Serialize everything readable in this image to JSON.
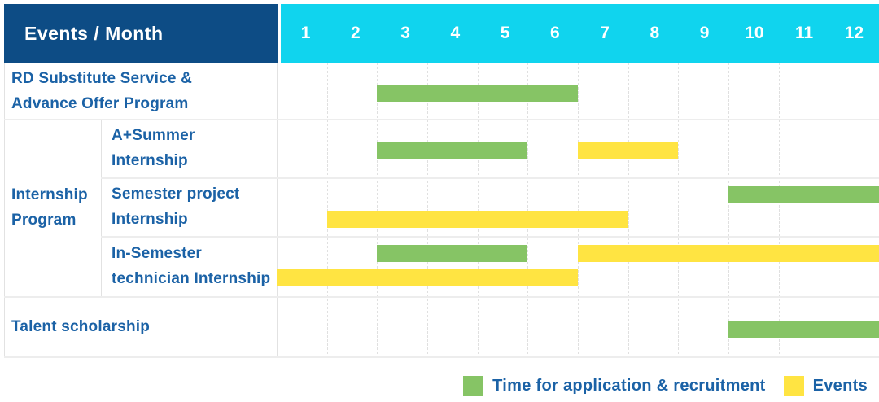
{
  "header": {
    "corner_label": "Events / Month",
    "months": [
      "1",
      "2",
      "3",
      "4",
      "5",
      "6",
      "7",
      "8",
      "9",
      "10",
      "11",
      "12"
    ]
  },
  "colors": {
    "header_bg": "#0d4c85",
    "months_bg": "#10d4ee",
    "header_text": "#ffffff",
    "label_text": "#1b62a6",
    "application": "#86c465",
    "events": "#ffe442",
    "grid": "#e0e0e0"
  },
  "chart_data": {
    "type": "bar",
    "subtype": "gantt",
    "xlabel": "Month",
    "x_ticks": [
      "1",
      "2",
      "3",
      "4",
      "5",
      "6",
      "7",
      "8",
      "9",
      "10",
      "11",
      "12"
    ],
    "x_range": [
      1,
      12
    ],
    "grid": true,
    "groups": [
      {
        "label": "Internship Program",
        "label_lines": [
          "Internship",
          "Program"
        ],
        "rows_spanned": [
          2,
          3,
          4
        ]
      }
    ],
    "rows": [
      {
        "label": "RD Substitute Service & Advance Offer Program",
        "label_lines": [
          "RD Substitute Service &",
          "Advance Offer Program"
        ],
        "group": null,
        "bars": [
          {
            "kind": "application",
            "start_month": 3,
            "end_month": 6,
            "lane": "single"
          }
        ]
      },
      {
        "label": "A+Summer Internship",
        "label_lines": [
          "A+Summer",
          "Internship"
        ],
        "group": "Internship Program",
        "bars": [
          {
            "kind": "application",
            "start_month": 3,
            "end_month": 5,
            "lane": "single"
          },
          {
            "kind": "events",
            "start_month": 7,
            "end_month": 8,
            "lane": "single"
          }
        ]
      },
      {
        "label": "Semester project Internship",
        "label_lines": [
          "Semester project",
          "Internship"
        ],
        "group": "Internship Program",
        "bars": [
          {
            "kind": "application",
            "start_month": 10,
            "end_month": 12,
            "lane": "top"
          },
          {
            "kind": "events",
            "start_month": 2,
            "end_month": 7,
            "lane": "bottom"
          }
        ]
      },
      {
        "label": "In-Semester technician Internship",
        "label_lines": [
          "In-Semester",
          "technician Internship"
        ],
        "group": "Internship Program",
        "bars": [
          {
            "kind": "application",
            "start_month": 3,
            "end_month": 5,
            "lane": "top"
          },
          {
            "kind": "events",
            "start_month": 7,
            "end_month": 12,
            "lane": "top"
          },
          {
            "kind": "events",
            "start_month": 1,
            "end_month": 6,
            "lane": "bottom"
          }
        ]
      },
      {
        "label": "Talent scholarship",
        "label_lines": [
          "Talent scholarship"
        ],
        "group": null,
        "bars": [
          {
            "kind": "application",
            "start_month": 10,
            "end_month": 12,
            "lane": "single"
          }
        ]
      }
    ],
    "legend": [
      {
        "key": "application",
        "label": "Time for application & recruitment",
        "color": "#86c465"
      },
      {
        "key": "events",
        "label": "Events",
        "color": "#ffe442"
      }
    ],
    "legend_position": "bottom-right"
  }
}
